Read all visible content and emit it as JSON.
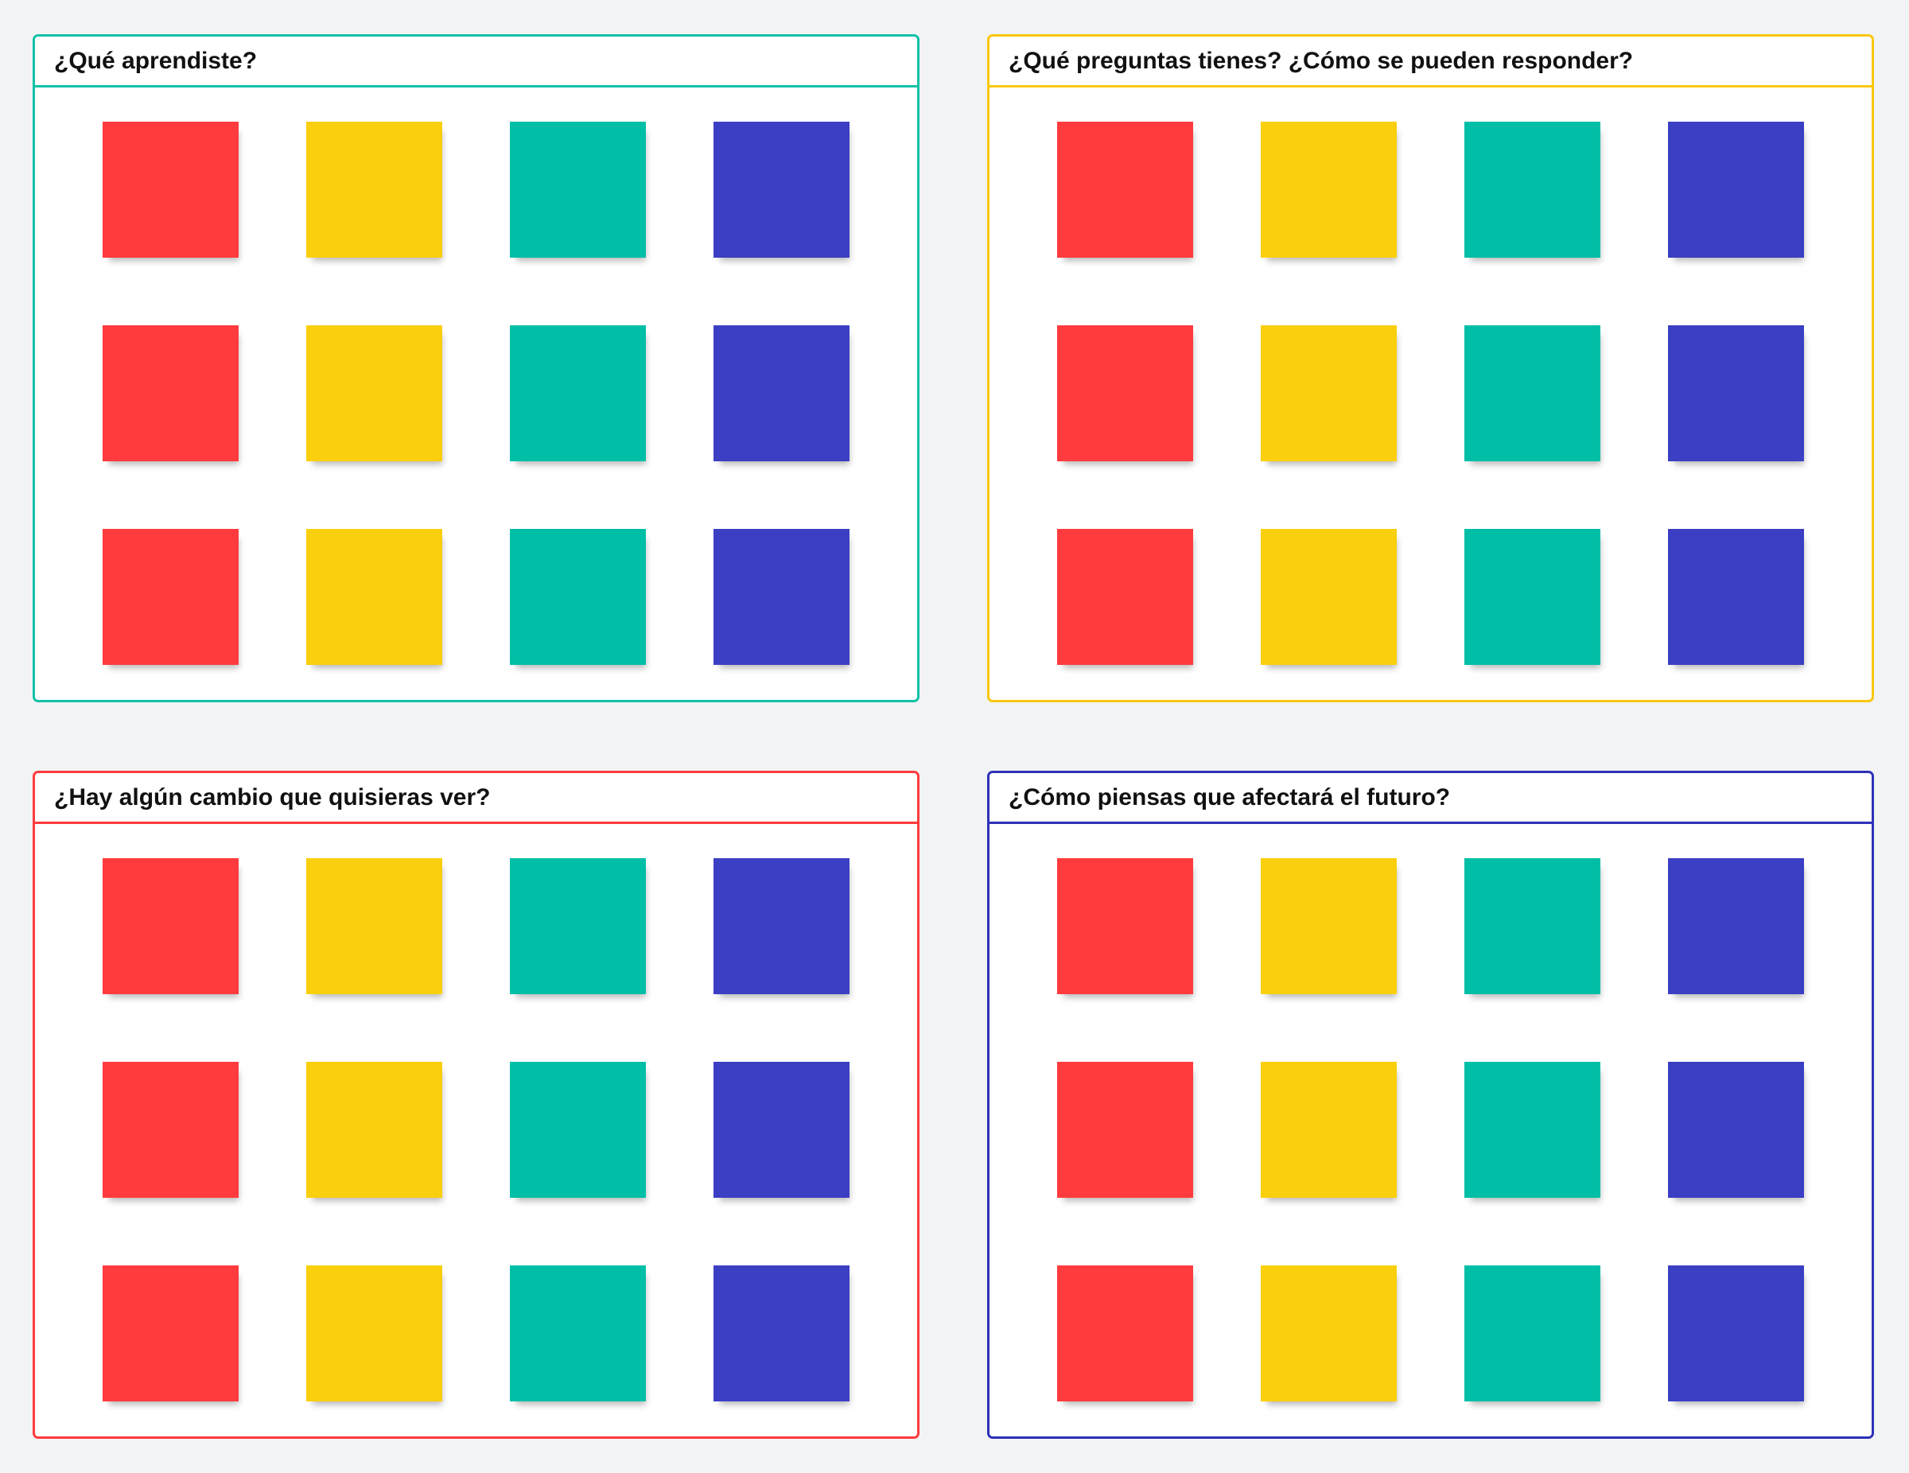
{
  "colors": {
    "note_red": "#FF3B3D",
    "note_yellow": "#FACF0E",
    "note_teal": "#00BFA6",
    "note_blue": "#3B3FC3",
    "frame_teal": "#12C1A7",
    "frame_yellow": "#FAC710",
    "frame_red": "#FF3B3D",
    "frame_blue": "#2D31B8"
  },
  "frames": [
    {
      "title": "¿Qué aprendiste?",
      "border_color": "#12C1A7"
    },
    {
      "title": "¿Qué preguntas tienes? ¿Cómo se pueden responder?",
      "border_color": "#FAC710"
    },
    {
      "title": "¿Hay algún cambio que quisieras ver?",
      "border_color": "#FF3B3D"
    },
    {
      "title": "¿Cómo piensas que afectará el futuro?",
      "border_color": "#2D31B8"
    }
  ],
  "note_columns": [
    "red",
    "yellow",
    "teal",
    "blue"
  ],
  "note_rows": 3
}
